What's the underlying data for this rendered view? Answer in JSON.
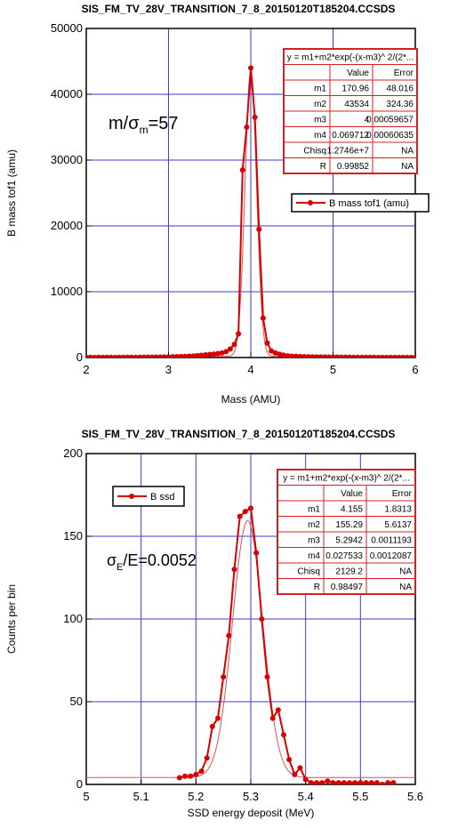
{
  "colors": {
    "series": "#d90000",
    "fit": "#e05050",
    "grid": "#3b3bd6",
    "frame": "#000000",
    "table_border": "#d42020"
  },
  "chart_data": [
    {
      "type": "line",
      "title": "SIS_FM_TV_28V_TRANSITION_7_8_20150120T185204.CCSDS",
      "xlabel": "Mass (AMU)",
      "ylabel": "B mass tof1 (amu)",
      "xlim": [
        2,
        6
      ],
      "ylim": [
        0,
        50000
      ],
      "x_ticks": [
        "2",
        "3",
        "4",
        "5",
        "6"
      ],
      "y_ticks": [
        "0",
        "10000",
        "20000",
        "30000",
        "40000",
        "50000"
      ],
      "grid": true,
      "legend": "right",
      "annotation": {
        "main": "m/σ",
        "sub": "m",
        "tail": "=57"
      },
      "series": [
        {
          "name": "B mass tof1 (amu)",
          "x": [
            2.0,
            2.05,
            2.1,
            2.15,
            2.2,
            2.25,
            2.3,
            2.35,
            2.4,
            2.45,
            2.5,
            2.55,
            2.6,
            2.65,
            2.7,
            2.75,
            2.8,
            2.85,
            2.9,
            2.95,
            3.0,
            3.05,
            3.1,
            3.15,
            3.2,
            3.25,
            3.3,
            3.35,
            3.4,
            3.45,
            3.5,
            3.55,
            3.6,
            3.65,
            3.7,
            3.75,
            3.8,
            3.85,
            3.9,
            3.95,
            4.0,
            4.05,
            4.1,
            4.15,
            4.2,
            4.25,
            4.3,
            4.35,
            4.4,
            4.45,
            4.5,
            4.55,
            4.6,
            4.65,
            4.7,
            4.75,
            4.8,
            4.85,
            4.9,
            4.95,
            5.0,
            5.05,
            5.1,
            5.15,
            5.2,
            5.25,
            5.3,
            5.35,
            5.4,
            5.45,
            5.5,
            5.55,
            5.6,
            5.65,
            5.7,
            5.75,
            5.8,
            5.85,
            5.9,
            5.95,
            6.0
          ],
          "y": [
            30,
            40,
            20,
            35,
            25,
            30,
            40,
            20,
            30,
            35,
            45,
            40,
            30,
            50,
            45,
            60,
            55,
            70,
            60,
            80,
            90,
            110,
            130,
            150,
            170,
            200,
            240,
            280,
            330,
            400,
            470,
            520,
            600,
            700,
            900,
            1300,
            2000,
            3600,
            28500,
            35000,
            44000,
            36500,
            19500,
            6000,
            2200,
            1000,
            700,
            500,
            350,
            250,
            200,
            180,
            150,
            120,
            110,
            100,
            90,
            80,
            80,
            70,
            60,
            60,
            50,
            50,
            45,
            40,
            40,
            35,
            30,
            30,
            30,
            25,
            25,
            20,
            20,
            20,
            20,
            15,
            15,
            15,
            15
          ]
        }
      ],
      "fit": {
        "m1": 170.96,
        "m2": 43534,
        "m3": 4,
        "m4": 0.069712
      },
      "fit_table": {
        "formula": "y = m1+m2*exp(-(x-m3)^ 2/(2*...",
        "headers": [
          "",
          "Value",
          "Error"
        ],
        "rows": [
          [
            "m1",
            "170.96",
            "48.016"
          ],
          [
            "m2",
            "43534",
            "324.36"
          ],
          [
            "m3",
            "4",
            "0.00059657"
          ],
          [
            "m4",
            "0.069712",
            "0.00060635"
          ],
          [
            "Chisq",
            "1.2746e+7",
            "NA"
          ],
          [
            "R",
            "0.99852",
            "NA"
          ]
        ]
      }
    },
    {
      "type": "line",
      "title": "SIS_FM_TV_28V_TRANSITION_7_8_20150120T185204.CCSDS",
      "xlabel": "SSD energy deposit (MeV)",
      "ylabel": "Counts per bin",
      "xlim": [
        5,
        5.6
      ],
      "ylim": [
        0,
        200
      ],
      "x_ticks": [
        "5",
        "5.1",
        "5.2",
        "5.3",
        "5.4",
        "5.5",
        "5.6"
      ],
      "y_ticks": [
        "0",
        "50",
        "100",
        "150",
        "200"
      ],
      "grid": true,
      "legend": "top-left",
      "annotation": {
        "main": "σ",
        "sub": "E",
        "tail": "/E=0.0052"
      },
      "series": [
        {
          "name": "B ssd",
          "x": [
            5.17,
            5.18,
            5.19,
            5.2,
            5.21,
            5.22,
            5.23,
            5.24,
            5.25,
            5.26,
            5.27,
            5.28,
            5.29,
            5.3,
            5.31,
            5.32,
            5.33,
            5.34,
            5.35,
            5.36,
            5.37,
            5.38,
            5.39,
            5.4,
            5.41,
            5.42,
            5.43,
            5.44,
            5.45,
            5.46,
            5.47,
            5.48,
            5.49,
            5.5,
            5.51,
            5.52,
            5.53,
            5.54,
            5.55,
            5.56
          ],
          "y": [
            4,
            5,
            5,
            6,
            8,
            16,
            35,
            40,
            65,
            90,
            130,
            162,
            165,
            167,
            140,
            100,
            65,
            40,
            45,
            30,
            15,
            6,
            10,
            3,
            1,
            1,
            1,
            2,
            1,
            1,
            1,
            1,
            1,
            1,
            1,
            1,
            1,
            0,
            1,
            1
          ]
        }
      ],
      "fit": {
        "m1": 4.155,
        "m2": 155.29,
        "m3": 5.2942,
        "m4": 0.027533
      },
      "fit_table": {
        "formula": "y = m1+m2*exp(-(x-m3)^ 2/(2*...",
        "headers": [
          "",
          "Value",
          "Error"
        ],
        "rows": [
          [
            "m1",
            "4.155",
            "1.8313"
          ],
          [
            "m2",
            "155.29",
            "5.6137"
          ],
          [
            "m3",
            "5.2942",
            "0.0011193"
          ],
          [
            "m4",
            "0.027533",
            "0.0012087"
          ],
          [
            "Chisq",
            "2129.2",
            "NA"
          ],
          [
            "R",
            "0.98497",
            "NA"
          ]
        ]
      }
    }
  ]
}
